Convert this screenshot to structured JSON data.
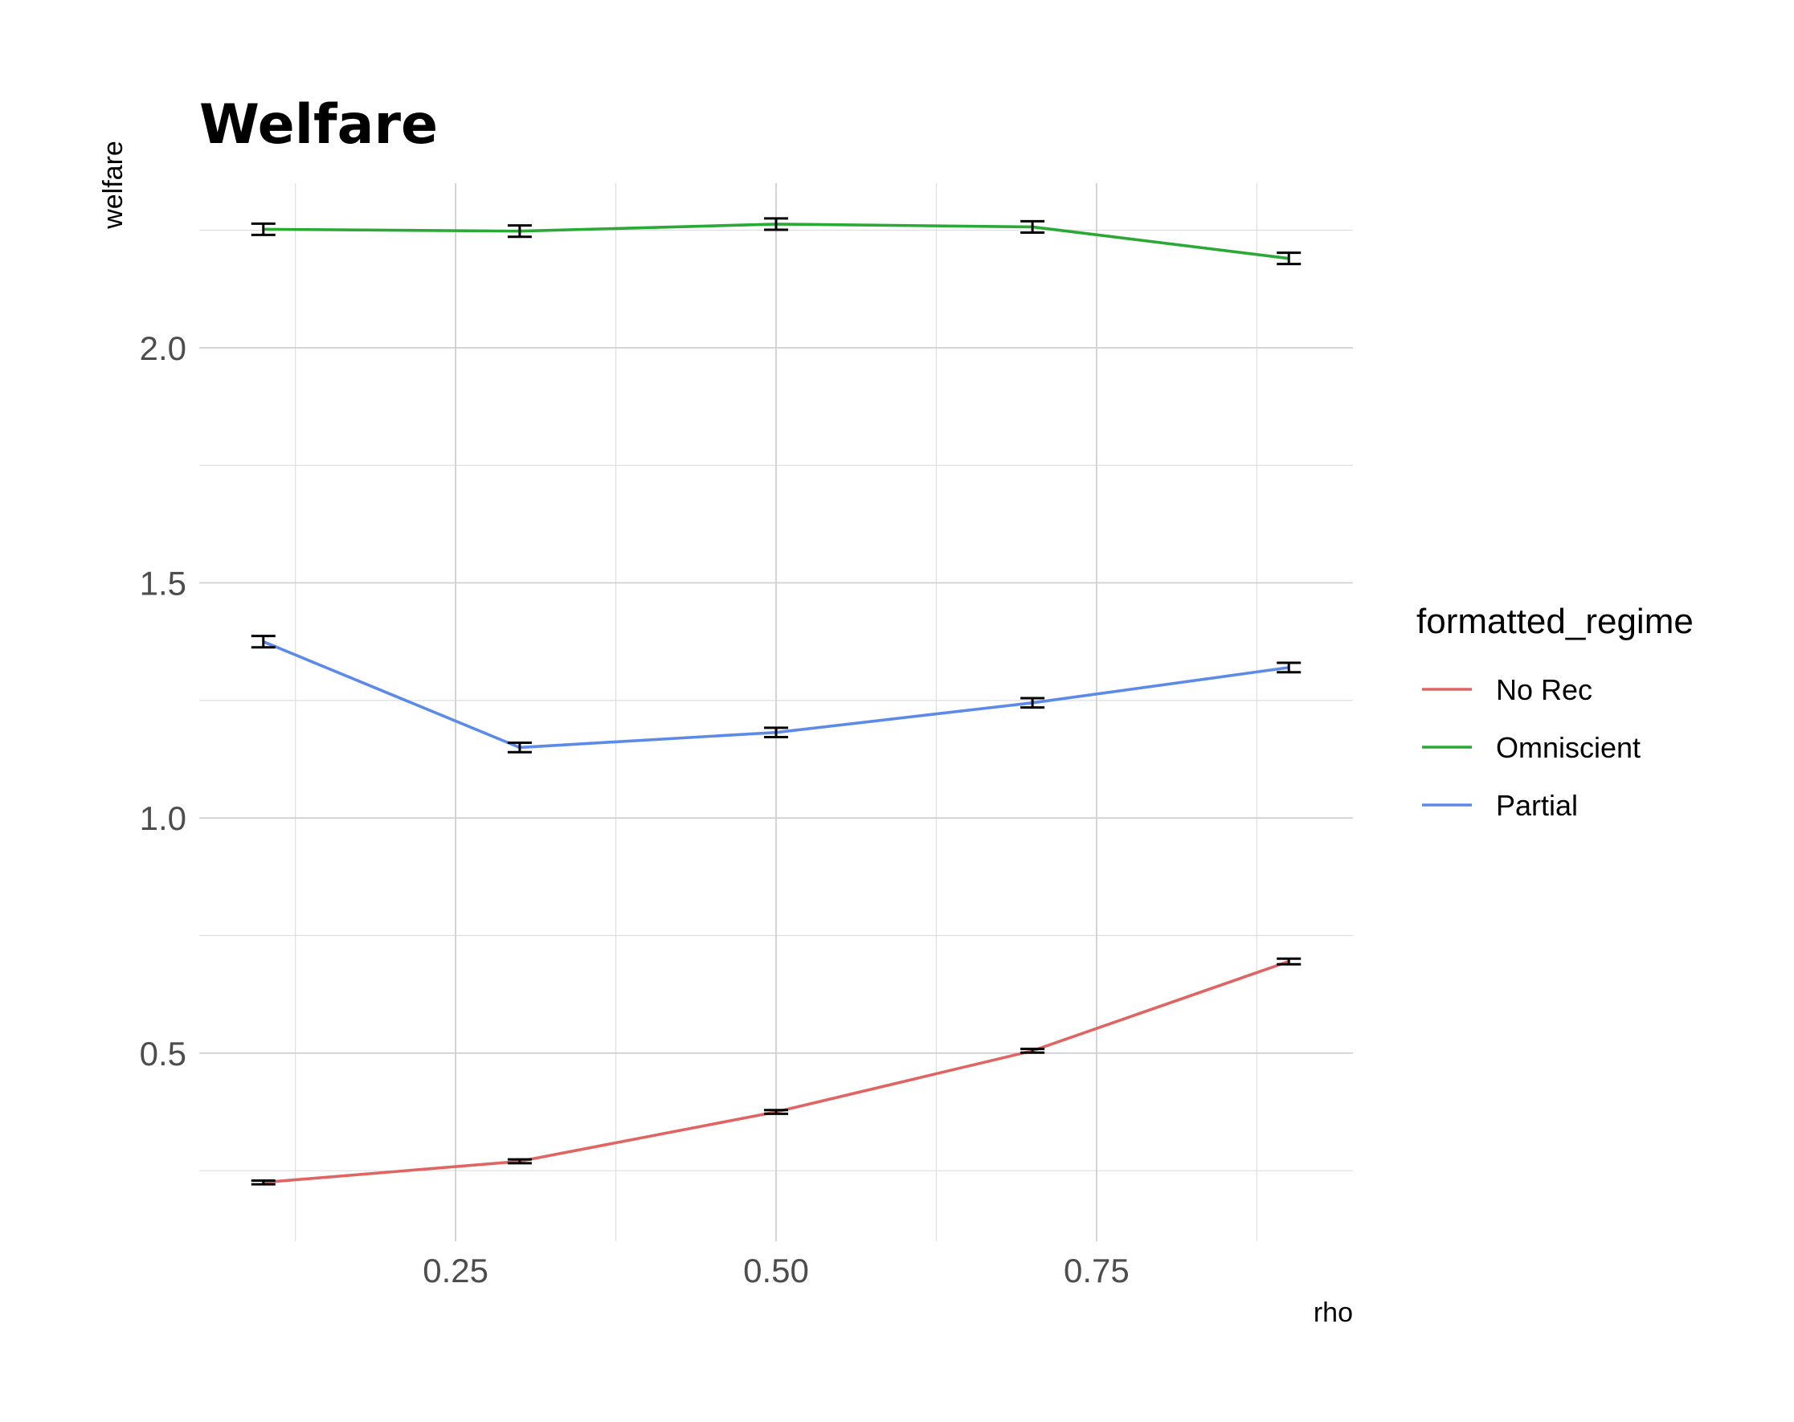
{
  "chart_data": {
    "type": "line",
    "title": "Welfare",
    "xlabel": "rho",
    "ylabel": "welfare",
    "xlim": [
      0.05,
      0.95
    ],
    "ylim": [
      0.1,
      2.35
    ],
    "x_ticks": [
      0.25,
      0.5,
      0.75
    ],
    "x_tick_labels": [
      "0.25",
      "0.50",
      "0.75"
    ],
    "y_ticks": [
      0.5,
      1.0,
      1.5,
      2.0
    ],
    "y_tick_labels": [
      "0.5",
      "1.0",
      "1.5",
      "2.0"
    ],
    "x_minor_ticks": [
      0.125,
      0.375,
      0.625,
      0.875
    ],
    "y_minor_ticks": [
      0.25,
      0.75,
      1.25,
      1.75,
      2.25
    ],
    "grid": true,
    "legend_title": "formatted_regime",
    "legend_position": "right",
    "x": [
      0.1,
      0.3,
      0.5,
      0.7,
      0.9
    ],
    "series": [
      {
        "name": "No Rec",
        "color": "#e06461",
        "values": [
          0.225,
          0.27,
          0.375,
          0.505,
          0.695
        ],
        "error": [
          0.004,
          0.004,
          0.004,
          0.004,
          0.006
        ]
      },
      {
        "name": "Omniscient",
        "color": "#2aa935",
        "values": [
          2.252,
          2.248,
          2.263,
          2.257,
          2.19
        ],
        "error": [
          0.012,
          0.012,
          0.012,
          0.012,
          0.012
        ]
      },
      {
        "name": "Partial",
        "color": "#5b8ae8",
        "values": [
          1.375,
          1.15,
          1.182,
          1.245,
          1.32
        ],
        "error": [
          0.012,
          0.01,
          0.01,
          0.01,
          0.01
        ]
      }
    ]
  }
}
